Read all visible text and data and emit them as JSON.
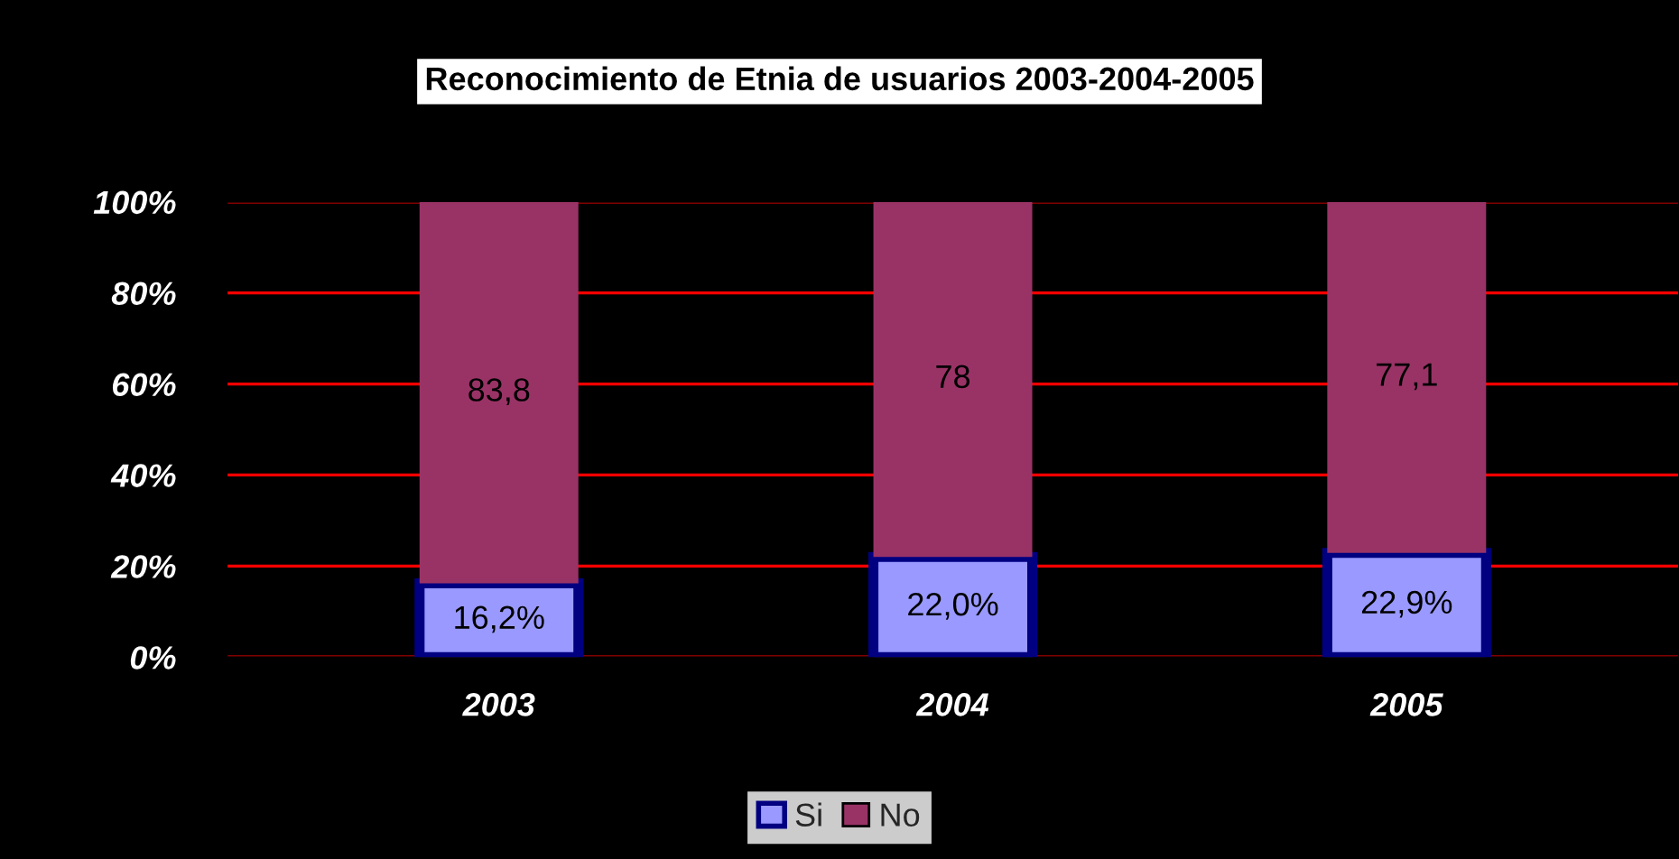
{
  "chart_data": {
    "type": "bar",
    "title": "Reconocimiento de Etnia de usuarios 2003-2004-2005",
    "categories": [
      "2003",
      "2004",
      "2005"
    ],
    "stacked": true,
    "series": [
      {
        "name": "Si",
        "color": "#9999ff",
        "values": [
          16.2,
          22.0,
          22.9
        ],
        "value_labels": [
          "16,2%",
          "22,0%",
          "22,9%"
        ]
      },
      {
        "name": "No",
        "color": "#993366",
        "values": [
          83.8,
          78,
          77.1
        ],
        "value_labels": [
          "83,8",
          "78",
          "77,1"
        ]
      }
    ],
    "ylim": [
      0,
      100
    ],
    "yticks": [
      {
        "value": 0,
        "label": "0%"
      },
      {
        "value": 20,
        "label": "20%"
      },
      {
        "value": 40,
        "label": "40%"
      },
      {
        "value": 60,
        "label": "60%"
      },
      {
        "value": 80,
        "label": "80%"
      },
      {
        "value": 100,
        "label": "100%"
      }
    ],
    "grid": "y",
    "legend": "bottom"
  }
}
